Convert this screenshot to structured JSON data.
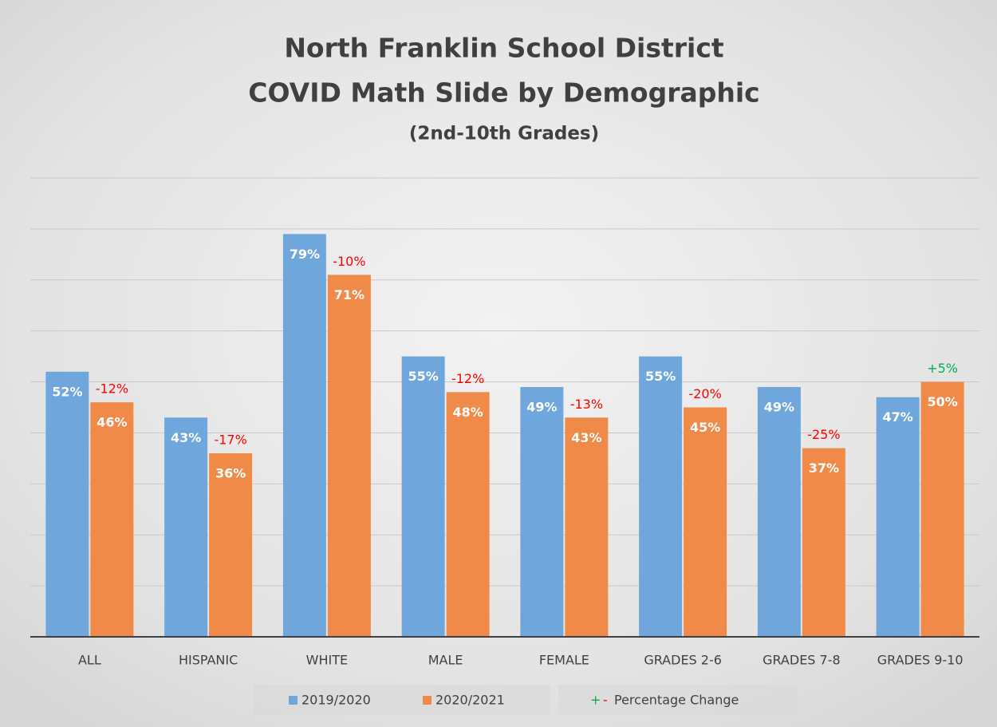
{
  "chart_data": {
    "type": "bar",
    "title": "North Franklin School District",
    "title_line2": "COVID Math Slide by Demographic",
    "subtitle": "(2nd-10th Grades)",
    "categories": [
      "ALL",
      "HISPANIC",
      "WHITE",
      "MALE",
      "FEMALE",
      "GRADES 2-6",
      "GRADES 7-8",
      "GRADES 9-10"
    ],
    "series": [
      {
        "name": "2019/2020",
        "color": "#6fa6dc",
        "values": [
          52,
          43,
          79,
          55,
          49,
          55,
          49,
          47
        ],
        "value_labels": [
          "52%",
          "43%",
          "79%",
          "55%",
          "49%",
          "55%",
          "49%",
          "47%"
        ]
      },
      {
        "name": "2020/2021",
        "color": "#ef8a48",
        "values": [
          46,
          36,
          71,
          48,
          43,
          45,
          37,
          50
        ],
        "value_labels": [
          "46%",
          "36%",
          "71%",
          "48%",
          "43%",
          "45%",
          "37%",
          "50%"
        ]
      }
    ],
    "changes": {
      "labels": [
        "-12%",
        "-17%",
        "-10%",
        "-12%",
        "-13%",
        "-20%",
        "-25%",
        "+5%"
      ],
      "colors": [
        "#ff0000",
        "#ff0000",
        "#ff0000",
        "#ff0000",
        "#ff0000",
        "#ff0000",
        "#ff0000",
        "#00b050"
      ]
    },
    "change_legend": {
      "plus": "+",
      "minus": "-",
      "label": "Percentage Change",
      "plus_color": "#00b050",
      "minus_color": "#ff0000"
    },
    "ylim": [
      0,
      90
    ],
    "yticks": [
      0,
      10,
      20,
      30,
      40,
      50,
      60,
      70,
      80,
      90
    ],
    "grid": true
  }
}
